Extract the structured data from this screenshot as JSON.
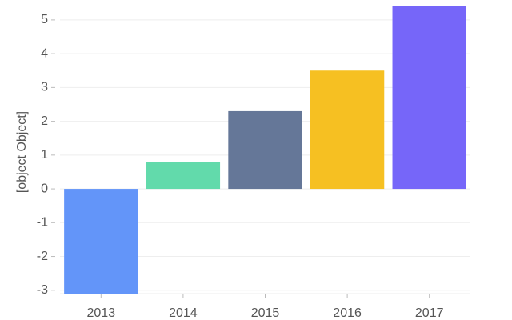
{
  "chart_data": {
    "type": "bar",
    "y_label": "[object Object]",
    "categories": [
      "2013",
      "2014",
      "2015",
      "2016",
      "2017"
    ],
    "values": [
      -3.1,
      0.8,
      2.3,
      3.5,
      5.4
    ],
    "colors": [
      "#6395f9",
      "#62daab",
      "#657798",
      "#f6c022",
      "#7666f9"
    ],
    "ylim": [
      -3.1,
      5.4
    ],
    "yticks": [
      -3,
      -2,
      -1,
      0,
      1,
      2,
      3,
      4,
      5
    ],
    "grid": true
  }
}
